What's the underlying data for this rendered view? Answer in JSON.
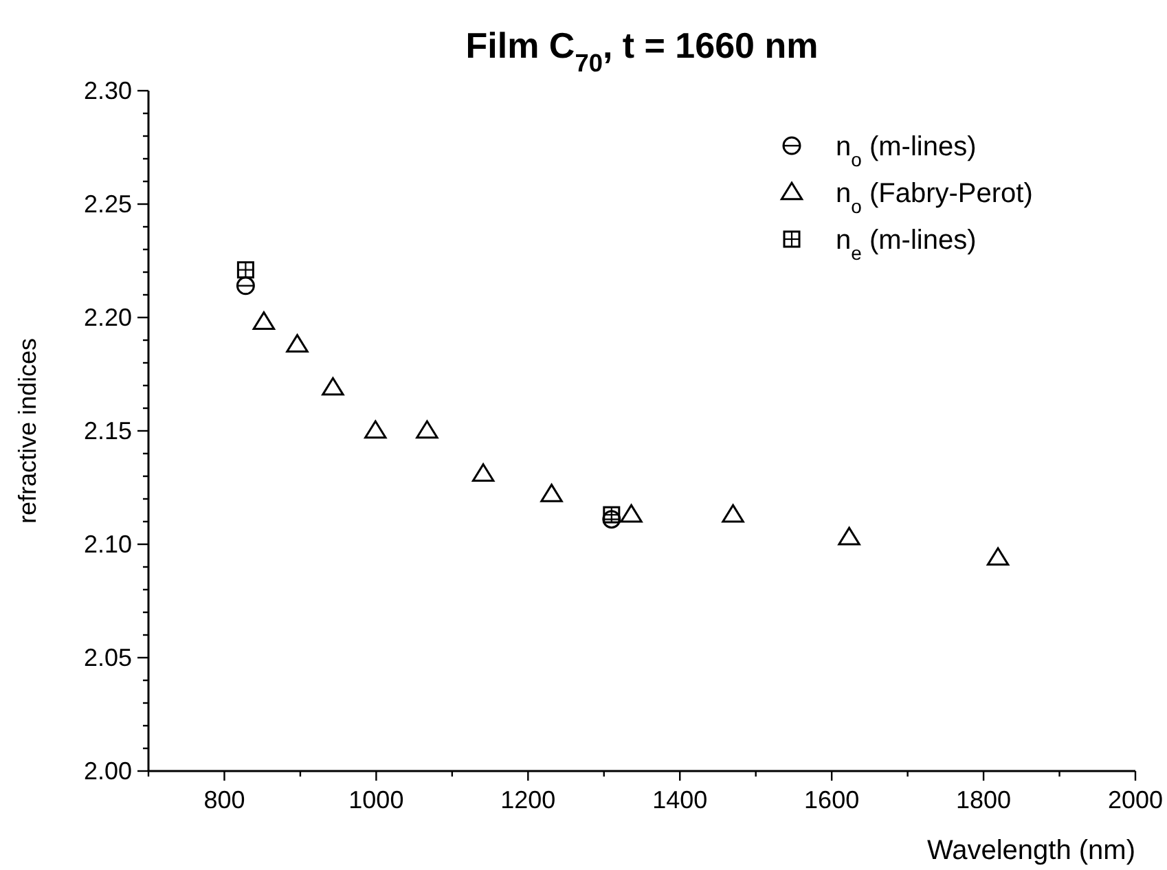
{
  "chart_data": {
    "type": "scatter",
    "title": "Film C$_{70}$, t = 1660 nm",
    "xlabel": "Wavelength (nm)",
    "ylabel": "refractive indices",
    "xlim": [
      700,
      2000
    ],
    "ylim": [
      2.0,
      2.3
    ],
    "xticks": [
      {
        "value": 700,
        "label": null
      },
      800,
      {
        "value": 900,
        "label": null
      },
      1000,
      {
        "value": 1100,
        "label": null
      },
      1200,
      {
        "value": 1300,
        "label": null
      },
      1400,
      {
        "value": 1500,
        "label": null
      },
      1600,
      {
        "value": 1700,
        "label": null
      },
      1800,
      {
        "value": 1900,
        "label": null
      },
      2000
    ],
    "yticks": [
      {
        "value": 2.0,
        "label": "2.00"
      },
      {
        "value": 2.01,
        "label": null
      },
      {
        "value": 2.02,
        "label": null
      },
      {
        "value": 2.03,
        "label": null
      },
      {
        "value": 2.04,
        "label": null
      },
      {
        "value": 2.05,
        "label": "2.05"
      },
      {
        "value": 2.06,
        "label": null
      },
      {
        "value": 2.07,
        "label": null
      },
      {
        "value": 2.08,
        "label": null
      },
      {
        "value": 2.09,
        "label": null
      },
      {
        "value": 2.1,
        "label": "2.10"
      },
      {
        "value": 2.11,
        "label": null
      },
      {
        "value": 2.12,
        "label": null
      },
      {
        "value": 2.13,
        "label": null
      },
      {
        "value": 2.14,
        "label": null
      },
      {
        "value": 2.15,
        "label": "2.15"
      },
      {
        "value": 2.16,
        "label": null
      },
      {
        "value": 2.17,
        "label": null
      },
      {
        "value": 2.18,
        "label": null
      },
      {
        "value": 2.19,
        "label": null
      },
      {
        "value": 2.2,
        "label": "2.20"
      },
      {
        "value": 2.21,
        "label": null
      },
      {
        "value": 2.22,
        "label": null
      },
      {
        "value": 2.23,
        "label": null
      },
      {
        "value": 2.24,
        "label": null
      },
      {
        "value": 2.25,
        "label": "2.25"
      },
      {
        "value": 2.26,
        "label": null
      },
      {
        "value": 2.27,
        "label": null
      },
      {
        "value": 2.28,
        "label": null
      },
      {
        "value": 2.29,
        "label": null
      },
      {
        "value": 2.3,
        "label": "2.30"
      }
    ],
    "grid": false,
    "legend": "top right",
    "series": [
      {
        "name": "n$_{o}$ (m-lines)",
        "color": "#000000",
        "marker": "circle",
        "x": [
          828,
          1310
        ],
        "values": [
          2.214,
          2.111
        ]
      },
      {
        "name": "n$_{o}$ (Fabry-Perot)",
        "color": "#000000",
        "marker": "triangle",
        "x": [
          852,
          896,
          943,
          999,
          1067,
          1141,
          1231,
          1336,
          1470,
          1623,
          1819
        ],
        "values": [
          2.198,
          2.188,
          2.169,
          2.15,
          2.15,
          2.131,
          2.122,
          2.113,
          2.113,
          2.103,
          2.094
        ]
      },
      {
        "name": "n$_{e}$ (m-lines)",
        "color": "#000000",
        "marker": "square",
        "x": [
          828,
          1310
        ],
        "values": [
          2.221,
          2.113
        ]
      }
    ]
  }
}
